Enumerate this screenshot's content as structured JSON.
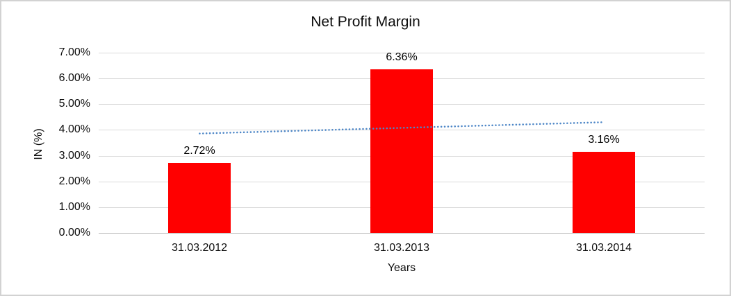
{
  "chart": {
    "title": "Net Profit Margin",
    "colors": {
      "bar": "#ff0000",
      "trendline": "#4e87c7",
      "gridline": "#d9d9d9",
      "axis_line": "#c0c0c0",
      "text": "#0d0d0d",
      "frame_border": "#d2d2d2",
      "background": "#ffffff"
    }
  },
  "chart_data": {
    "type": "bar",
    "title": "Net Profit Margin",
    "xlabel": "Years",
    "ylabel": "IN (%)",
    "categories": [
      "31.03.2012",
      "31.03.2013",
      "31.03.2014"
    ],
    "values": [
      2.72,
      6.36,
      3.16
    ],
    "data_labels": [
      "2.72%",
      "6.36%",
      "3.16%"
    ],
    "ylim": [
      0,
      7
    ],
    "y_tick_step": 1,
    "y_ticks": [
      "0.00%",
      "1.00%",
      "2.00%",
      "3.00%",
      "4.00%",
      "5.00%",
      "6.00%",
      "7.00%"
    ],
    "grid": true,
    "legend": "none",
    "bar_color": "#ff0000",
    "trendline": {
      "type": "linear",
      "style": "dotted",
      "color": "#4e87c7",
      "start_value": 3.86,
      "end_value": 4.3
    }
  }
}
